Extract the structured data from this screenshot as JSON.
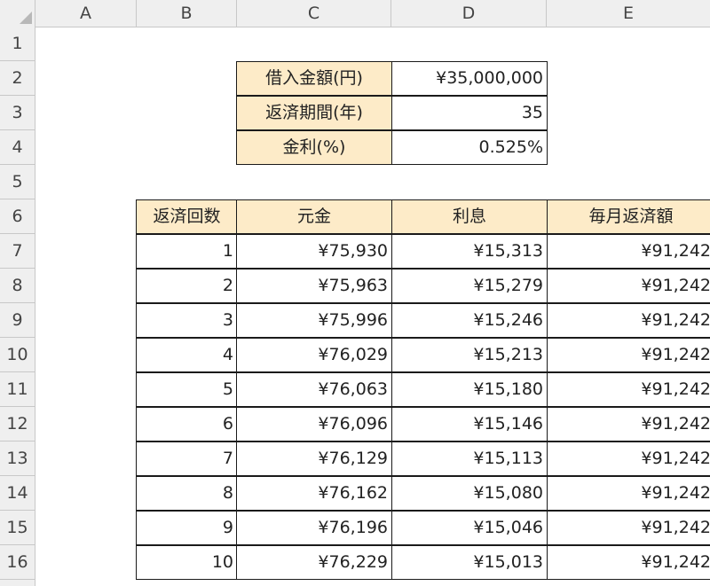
{
  "columns": [
    "A",
    "B",
    "C",
    "D",
    "E"
  ],
  "rows": [
    "1",
    "2",
    "3",
    "4",
    "5",
    "6",
    "7",
    "8",
    "9",
    "10",
    "11",
    "12",
    "13",
    "14",
    "15",
    "16"
  ],
  "loan_info": [
    {
      "label": "借入金額(円)",
      "value": "¥35,000,000"
    },
    {
      "label": "返済期間(年)",
      "value": "35"
    },
    {
      "label": "金利(%)",
      "value": "0.525%"
    }
  ],
  "schedule": {
    "headers": [
      "返済回数",
      "元金",
      "利息",
      "毎月返済額"
    ],
    "rows": [
      [
        "1",
        "¥75,930",
        "¥15,313",
        "¥91,242"
      ],
      [
        "2",
        "¥75,963",
        "¥15,279",
        "¥91,242"
      ],
      [
        "3",
        "¥75,996",
        "¥15,246",
        "¥91,242"
      ],
      [
        "4",
        "¥76,029",
        "¥15,213",
        "¥91,242"
      ],
      [
        "5",
        "¥76,063",
        "¥15,180",
        "¥91,242"
      ],
      [
        "6",
        "¥76,096",
        "¥15,146",
        "¥91,242"
      ],
      [
        "7",
        "¥76,129",
        "¥15,113",
        "¥91,242"
      ],
      [
        "8",
        "¥76,162",
        "¥15,080",
        "¥91,242"
      ],
      [
        "9",
        "¥76,196",
        "¥15,046",
        "¥91,242"
      ],
      [
        "10",
        "¥76,229",
        "¥15,013",
        "¥91,242"
      ]
    ]
  }
}
